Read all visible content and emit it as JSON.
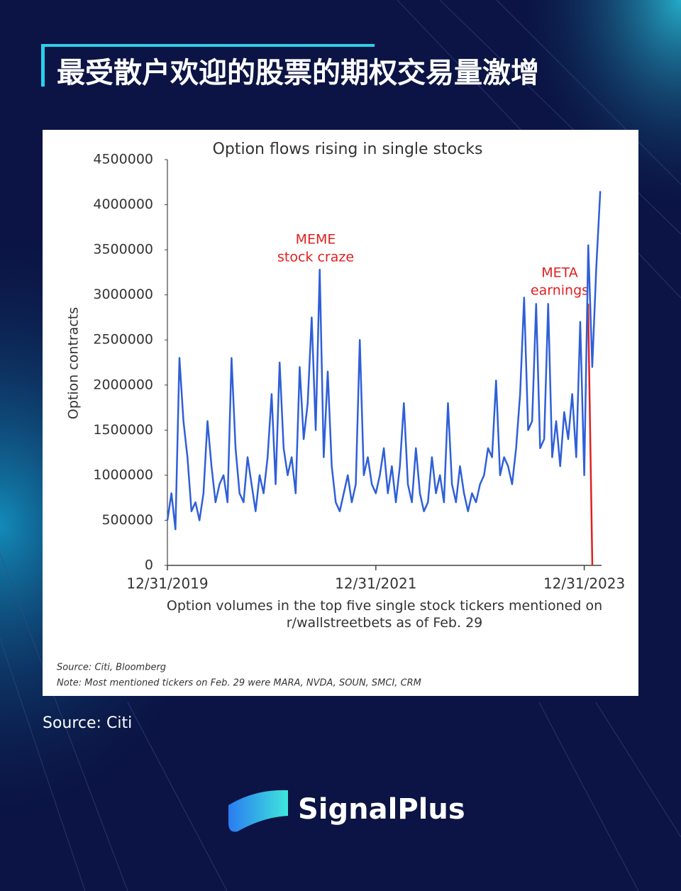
{
  "header": {
    "title": "最受散户欢迎的股票的期权交易量激增"
  },
  "chart_data": {
    "type": "line",
    "title": "Option flows rising in single stocks",
    "ylabel": "Option contracts",
    "xlabel": "Option volumes in the top five single stock tickers mentioned on r/wallstreetbets as of Feb. 29",
    "categories": [
      "12/31/2019",
      null,
      null,
      null,
      null,
      null,
      null,
      null,
      null,
      null,
      null,
      null,
      null,
      null,
      null,
      null,
      null,
      null,
      null,
      null,
      null,
      null,
      null,
      null,
      null,
      null,
      null,
      null,
      null,
      null,
      null,
      null,
      null,
      null,
      null,
      null,
      null,
      null,
      null,
      null,
      null,
      null,
      null,
      null,
      null,
      null,
      null,
      null,
      null,
      null,
      null,
      null,
      "12/31/2021",
      null,
      null,
      null,
      null,
      null,
      null,
      null,
      null,
      null,
      null,
      null,
      null,
      null,
      null,
      null,
      null,
      null,
      null,
      null,
      null,
      null,
      null,
      null,
      null,
      null,
      null,
      null,
      null,
      null,
      null,
      null,
      null,
      null,
      null,
      null,
      null,
      null,
      null,
      null,
      null,
      null,
      null,
      null,
      null,
      null,
      null,
      null,
      null,
      null,
      null,
      null,
      "12/31/2023",
      null,
      null,
      null,
      null
    ],
    "series": [
      {
        "name": "Option contracts",
        "color": "#2f5fd8",
        "values": [
          500000,
          800000,
          400000,
          2300000,
          1600000,
          1200000,
          600000,
          700000,
          500000,
          800000,
          1600000,
          1100000,
          700000,
          900000,
          1000000,
          700000,
          2300000,
          1300000,
          800000,
          700000,
          1200000,
          900000,
          600000,
          1000000,
          800000,
          1200000,
          1900000,
          900000,
          2250000,
          1300000,
          1000000,
          1200000,
          800000,
          2200000,
          1400000,
          1800000,
          2750000,
          1500000,
          3280000,
          1200000,
          2150000,
          1100000,
          700000,
          600000,
          800000,
          1000000,
          700000,
          900000,
          2500000,
          1000000,
          1200000,
          900000,
          800000,
          1000000,
          1300000,
          800000,
          1100000,
          700000,
          1100000,
          1800000,
          900000,
          700000,
          1300000,
          800000,
          600000,
          700000,
          1200000,
          800000,
          1000000,
          700000,
          1800000,
          900000,
          700000,
          1100000,
          800000,
          600000,
          800000,
          700000,
          900000,
          1000000,
          1300000,
          1200000,
          2050000,
          1000000,
          1200000,
          1100000,
          900000,
          1300000,
          1900000,
          2970000,
          1500000,
          1600000,
          2900000,
          1300000,
          1400000,
          2900000,
          1200000,
          1600000,
          1100000,
          1700000,
          1400000,
          1900000,
          1200000,
          2700000,
          1000000,
          3550000,
          2200000,
          3300000,
          4150000
        ]
      }
    ],
    "ylim": [
      0,
      4500000
    ],
    "yticks": [
      0,
      500000,
      1000000,
      1500000,
      2000000,
      2500000,
      3000000,
      3500000,
      4000000,
      4500000
    ],
    "grid": false,
    "annotations": [
      "MEME",
      "stock craze",
      "META",
      "earnings"
    ],
    "annotation_color": "#e02020",
    "source": "Source: Citi, Bloomberg",
    "note": "Note: Most mentioned tickers on Feb. 29 were MARA, NVDA, SOUN, SMCI, CRM"
  },
  "footer": {
    "source": "Source: Citi",
    "brand": "SignalPlus"
  }
}
